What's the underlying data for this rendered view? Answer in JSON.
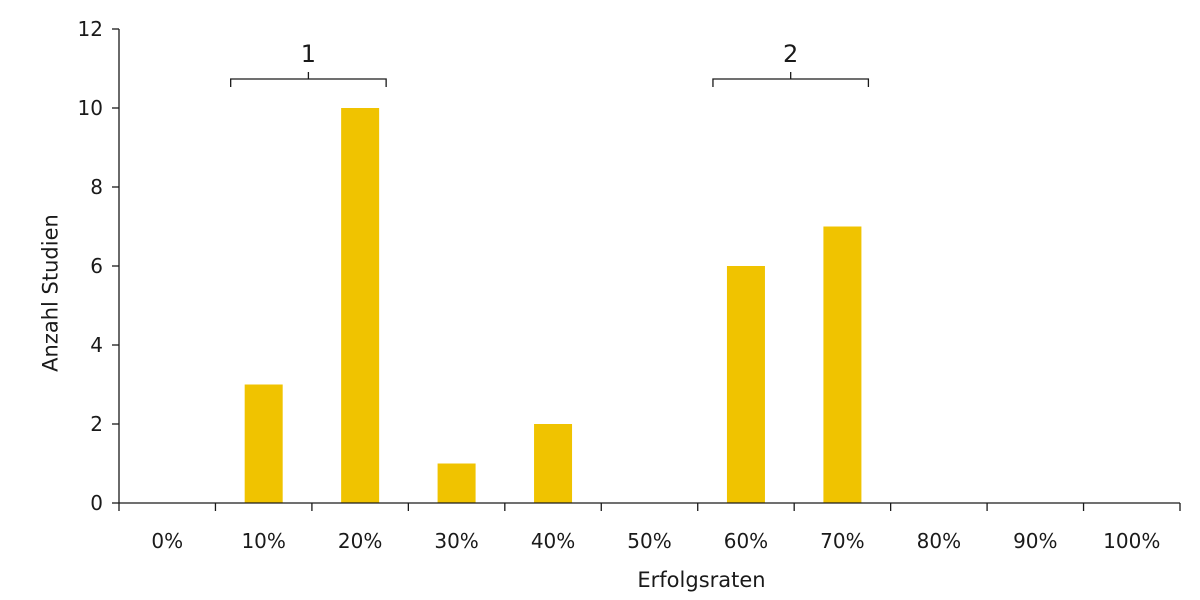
{
  "chart_data": {
    "type": "bar",
    "categories": [
      "0%",
      "10%",
      "20%",
      "30%",
      "40%",
      "50%",
      "60%",
      "70%",
      "80%",
      "90%",
      "100%"
    ],
    "values": [
      0,
      3,
      10,
      1,
      2,
      0,
      6,
      7,
      0,
      0,
      0
    ],
    "xlabel": "Erfolgsraten",
    "ylabel": "Anzahl Studien",
    "ylim": [
      0,
      12
    ],
    "yticks": [
      0,
      2,
      4,
      6,
      8,
      10,
      12
    ],
    "bar_color": "#F0C300",
    "grid": false,
    "annotations": [
      {
        "label": "1",
        "spans": [
          "10%",
          "20%"
        ]
      },
      {
        "label": "2",
        "spans": [
          "60%",
          "70%"
        ]
      }
    ]
  }
}
